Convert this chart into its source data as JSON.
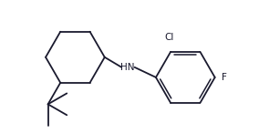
{
  "background_color": "#ffffff",
  "line_color": "#1a1a2e",
  "text_color": "#1a1a2e",
  "label_Cl": "Cl",
  "label_F": "F",
  "label_NH": "HN",
  "figsize": [
    2.84,
    1.46
  ],
  "dpi": 100,
  "lw": 1.3
}
